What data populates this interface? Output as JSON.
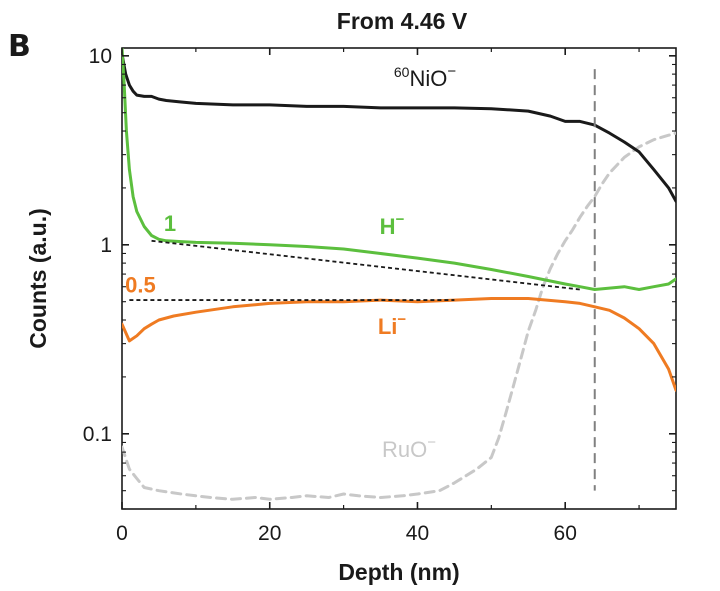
{
  "panel_letter": "B",
  "chart_data": {
    "type": "line",
    "title": "From 4.46 V",
    "xlabel": "Depth (nm)",
    "ylabel": "Counts (a.u.)",
    "xlim": [
      0,
      75
    ],
    "ylim": [
      0.04,
      11
    ],
    "yscale": "log",
    "xticks": [
      0,
      20,
      40,
      60
    ],
    "xtick_labels": [
      "0",
      "20",
      "40",
      "60"
    ],
    "yticks": [
      0.1,
      1,
      10
    ],
    "ytick_labels": [
      "0.1",
      "1",
      "10"
    ],
    "colors": {
      "NiO": "#1a1a1a",
      "H": "#5cbf3e",
      "Li": "#ef7b22",
      "RuO": "#c8c8c8",
      "guide": "#1a1a1a",
      "vline": "#808080"
    },
    "series": [
      {
        "name": "NiO",
        "label_sup": "60",
        "label_main": "NiO",
        "label_charge": "−",
        "label_color": "#1a1a1a",
        "color": "#1a1a1a",
        "dashed": false,
        "x": [
          0,
          0.5,
          1,
          1.5,
          2,
          3,
          4,
          5,
          6,
          8,
          10,
          15,
          20,
          25,
          30,
          35,
          40,
          45,
          50,
          55,
          58,
          60,
          62,
          64,
          66,
          68,
          70,
          72,
          74,
          75
        ],
        "y": [
          10.2,
          8.0,
          7.0,
          6.5,
          6.2,
          6.1,
          6.1,
          5.9,
          5.8,
          5.7,
          5.6,
          5.5,
          5.5,
          5.4,
          5.4,
          5.3,
          5.3,
          5.3,
          5.25,
          5.1,
          4.8,
          4.5,
          4.5,
          4.3,
          3.9,
          3.5,
          3.1,
          2.5,
          2.0,
          1.7
        ]
      },
      {
        "name": "H",
        "label_main": "H",
        "label_charge": "−",
        "label_color": "#5cbf3e",
        "color": "#5cbf3e",
        "dashed": false,
        "x": [
          0,
          0.3,
          0.6,
          1,
          1.5,
          2,
          3,
          4,
          5,
          6,
          8,
          10,
          15,
          20,
          25,
          30,
          35,
          40,
          45,
          50,
          55,
          60,
          62,
          64,
          66,
          68,
          70,
          72,
          74,
          75
        ],
        "y": [
          11,
          7.0,
          4.0,
          2.5,
          1.8,
          1.5,
          1.25,
          1.12,
          1.07,
          1.05,
          1.04,
          1.03,
          1.02,
          1.0,
          0.98,
          0.95,
          0.9,
          0.85,
          0.8,
          0.74,
          0.68,
          0.62,
          0.6,
          0.58,
          0.59,
          0.6,
          0.58,
          0.6,
          0.62,
          0.66
        ]
      },
      {
        "name": "Li",
        "label_main": "Li",
        "label_charge": "−",
        "label_color": "#ef7b22",
        "color": "#ef7b22",
        "dashed": false,
        "x": [
          0,
          1,
          2,
          3,
          4,
          5,
          7,
          10,
          15,
          20,
          25,
          30,
          35,
          40,
          45,
          50,
          55,
          60,
          62,
          64,
          66,
          68,
          70,
          72,
          74,
          75
        ],
        "y": [
          0.38,
          0.31,
          0.33,
          0.36,
          0.38,
          0.4,
          0.42,
          0.44,
          0.47,
          0.49,
          0.5,
          0.5,
          0.51,
          0.5,
          0.51,
          0.52,
          0.52,
          0.5,
          0.49,
          0.47,
          0.45,
          0.41,
          0.36,
          0.3,
          0.22,
          0.17
        ]
      },
      {
        "name": "RuO",
        "label_main": "RuO",
        "label_charge": "−",
        "label_color": "#c8c8c8",
        "color": "#c8c8c8",
        "dashed": true,
        "x": [
          0,
          1,
          2,
          3,
          5,
          8,
          10,
          12,
          15,
          18,
          20,
          23,
          25,
          28,
          30,
          32,
          35,
          38,
          40,
          43,
          45,
          48,
          50,
          51,
          52,
          53,
          54,
          55,
          56,
          57,
          58,
          59,
          60,
          61,
          62,
          63,
          64,
          65,
          66,
          68,
          70,
          72,
          74,
          75
        ],
        "y": [
          0.085,
          0.065,
          0.058,
          0.052,
          0.05,
          0.048,
          0.047,
          0.046,
          0.045,
          0.046,
          0.045,
          0.046,
          0.047,
          0.046,
          0.048,
          0.047,
          0.046,
          0.047,
          0.048,
          0.05,
          0.055,
          0.065,
          0.075,
          0.095,
          0.13,
          0.18,
          0.25,
          0.35,
          0.45,
          0.6,
          0.75,
          0.9,
          1.05,
          1.2,
          1.4,
          1.6,
          1.8,
          2.1,
          2.4,
          2.9,
          3.3,
          3.6,
          3.8,
          3.9
        ]
      }
    ],
    "guides": [
      {
        "name": "H",
        "x": [
          4,
          62
        ],
        "y": [
          1.05,
          0.58
        ]
      },
      {
        "name": "Li",
        "x": [
          1,
          45
        ],
        "y": [
          0.51,
          0.51
        ]
      }
    ],
    "vline": {
      "x": 64,
      "y_from": 0.05,
      "y_to": 8.5
    },
    "annotations": [
      {
        "name": "H-level",
        "text": "1",
        "color": "#5cbf3e",
        "x": 6.5,
        "y": 1.18
      },
      {
        "name": "Li-level",
        "text": "0.5",
        "color": "#ef7b22",
        "x": 2.5,
        "y": 0.56
      }
    ]
  }
}
